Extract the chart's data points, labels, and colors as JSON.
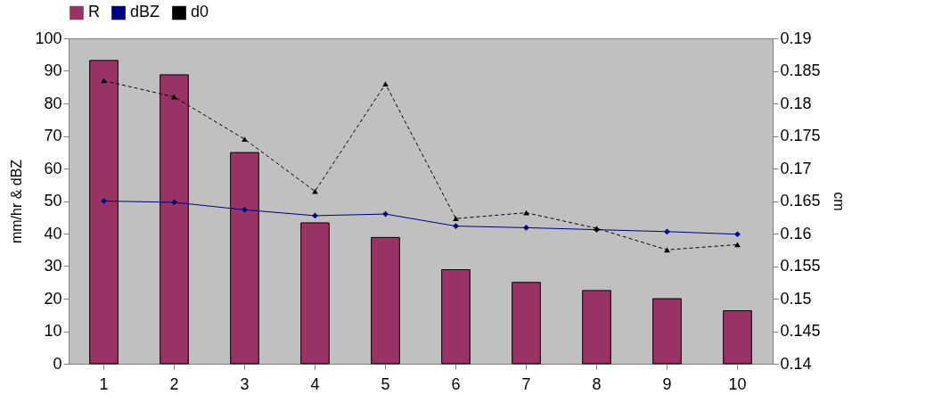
{
  "chart_data": {
    "type": "bar",
    "categories": [
      "1",
      "2",
      "3",
      "4",
      "5",
      "6",
      "7",
      "8",
      "9",
      "10"
    ],
    "ylabel": "mm/hr & dBZ",
    "y2label": "cm",
    "ylim": [
      0,
      100
    ],
    "yticks": [
      0,
      10,
      20,
      30,
      40,
      50,
      60,
      70,
      80,
      90,
      100
    ],
    "y2lim": [
      0.14,
      0.19
    ],
    "y2ticks": [
      0.14,
      0.145,
      0.15,
      0.155,
      0.16,
      0.165,
      0.17,
      0.175,
      0.18,
      0.185,
      0.19
    ],
    "grid": false,
    "legend": "top",
    "series": [
      {
        "name": "R",
        "color": "#993366",
        "values": [
          93.2,
          88.8,
          64.9,
          43.3,
          38.8,
          28.9,
          25.0,
          22.5,
          20.0,
          16.3
        ]
      },
      {
        "name": "dBZ",
        "type": "line",
        "color": "#000080",
        "marker": "diamond",
        "line_style": "solid",
        "values": [
          50.0,
          49.6,
          47.3,
          45.5,
          46.0,
          42.3,
          41.8,
          41.2,
          40.6,
          39.8
        ]
      },
      {
        "name": "d0",
        "type": "line",
        "color": "#000000",
        "marker": "triangle",
        "line_style": "dashed",
        "axis": "y2",
        "values": [
          0.1835,
          0.181,
          0.1745,
          0.1665,
          0.183,
          0.1623,
          0.1632,
          0.1608,
          0.1575,
          0.1583
        ]
      }
    ]
  }
}
